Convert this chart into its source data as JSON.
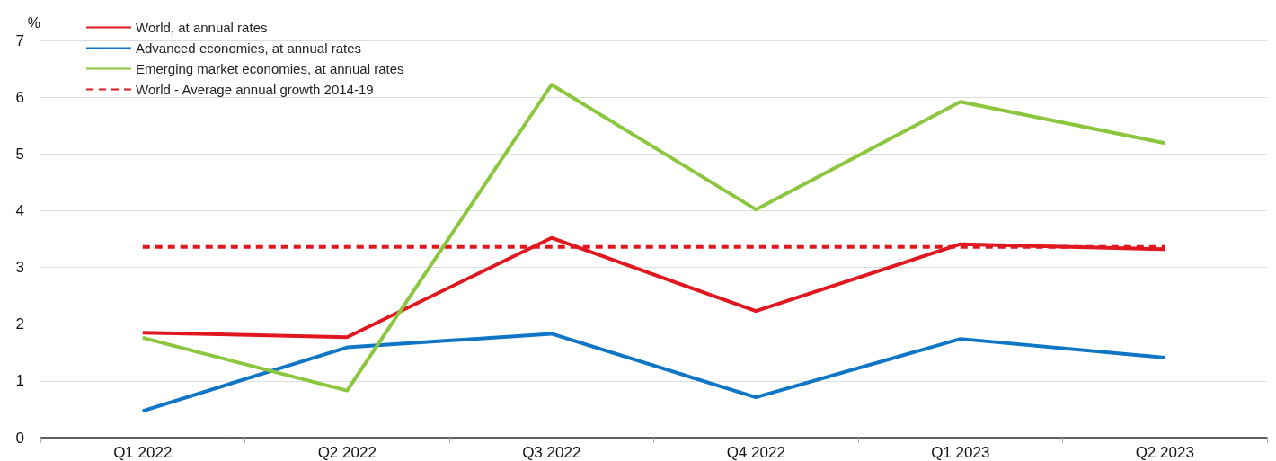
{
  "chart_data": {
    "type": "line",
    "ylabel": "%",
    "categories": [
      "Q1 2022",
      "Q2 2022",
      "Q3 2022",
      "Q4 2022",
      "Q1 2023",
      "Q2 2023"
    ],
    "series": [
      {
        "name": "World, at annual rates",
        "color": "#e0171f",
        "values": [
          1.85,
          1.77,
          3.52,
          2.23,
          3.41,
          3.32
        ]
      },
      {
        "name": "Advanced economies, at annual rates",
        "color": "#0e76c4",
        "values": [
          0.47,
          1.59,
          1.83,
          0.71,
          1.74,
          1.41
        ]
      },
      {
        "name": "Emerging market economies, at annual rates",
        "color": "#8cc63f",
        "values": [
          1.76,
          0.83,
          6.22,
          4.02,
          5.92,
          5.19
        ]
      },
      {
        "name": "World - Average annual growth 2014-19",
        "color": "#e0171f",
        "line_style": "dashed",
        "values": [
          3.36,
          3.36,
          3.36,
          3.36,
          3.36,
          3.36
        ]
      }
    ],
    "ylim": [
      0,
      7
    ],
    "yticks": [
      0,
      1,
      2,
      3,
      4,
      5,
      6,
      7
    ],
    "grid": "y",
    "legend": "top left",
    "marker": "none"
  }
}
